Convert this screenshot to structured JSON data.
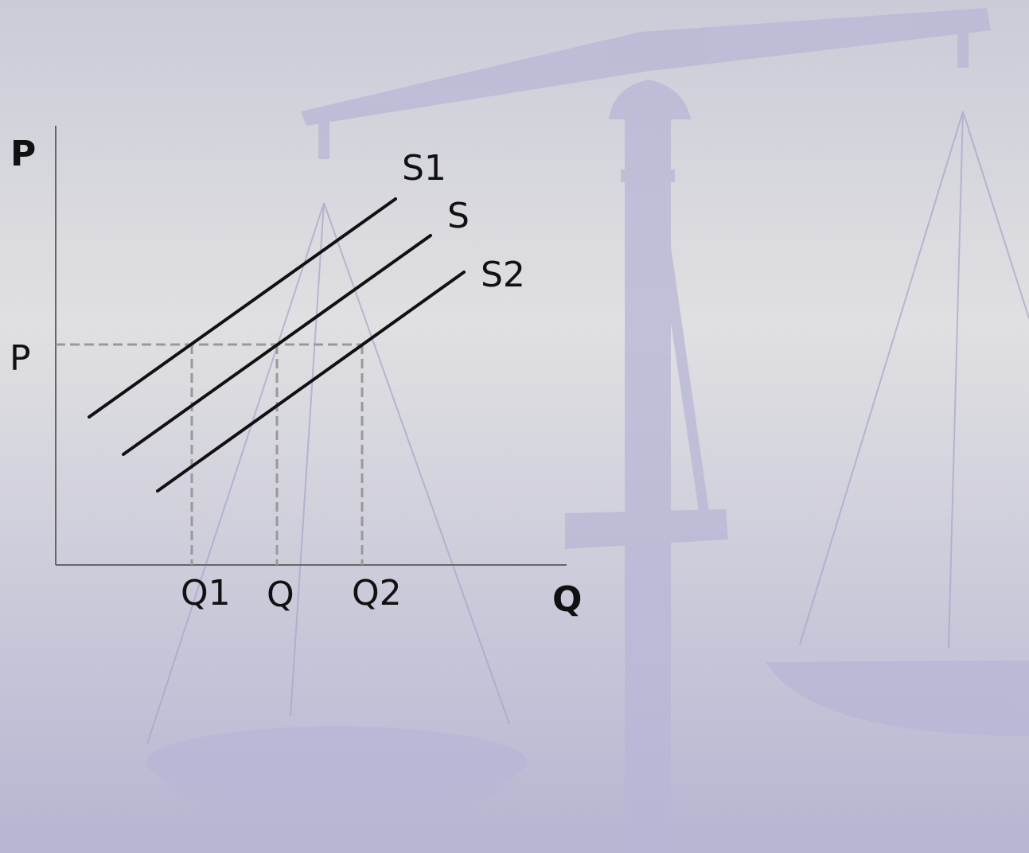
{
  "axes": {
    "y_label": "P",
    "x_label": "Q"
  },
  "price_label": "P",
  "quantity_labels": [
    "Q1",
    "Q",
    "Q2"
  ],
  "curves": [
    "S1",
    "S",
    "S2"
  ]
}
